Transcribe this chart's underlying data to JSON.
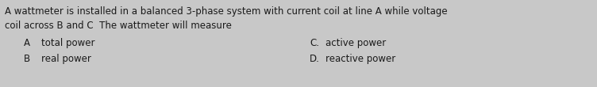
{
  "background_color": "#c8c8c8",
  "question_line1": "A wattmeter is installed in a balanced 3-phase system with current coil at line A while voltage",
  "question_line2": "coil across B and C  The wattmeter will measure",
  "option_A_label": "A",
  "option_A_text": "total power",
  "option_B_label": "B",
  "option_B_text": "real power",
  "option_C_label": "C.",
  "option_C_text": "active power",
  "option_D_label": "D.",
  "option_D_text": "reactive power",
  "font_size_question": 8.5,
  "font_size_options": 8.5,
  "text_color": "#1a1a1a",
  "fig_width": 7.52,
  "fig_height": 1.1,
  "dpi": 100
}
